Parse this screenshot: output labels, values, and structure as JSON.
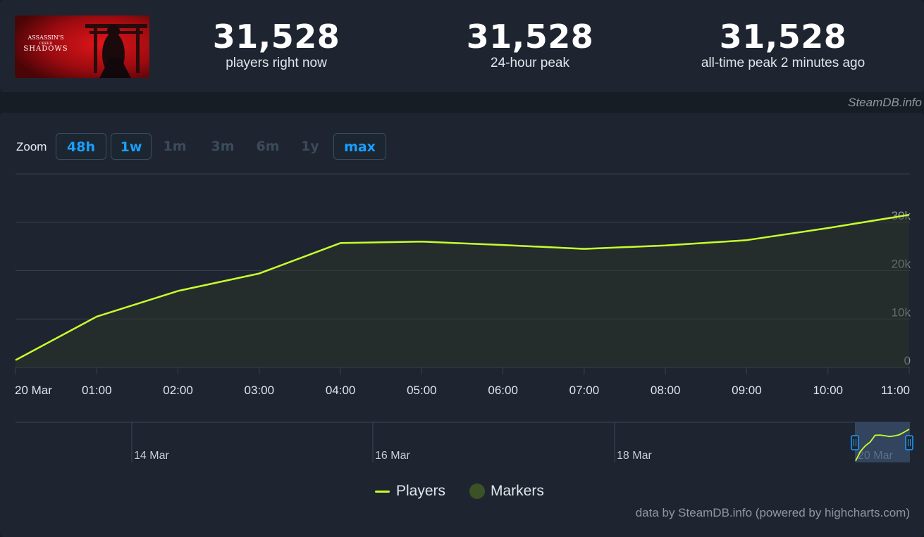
{
  "game": {
    "logo_line1": "ASSASSIN'S",
    "logo_line2": "CREED",
    "logo_line3": "SHADOWS"
  },
  "stats": [
    {
      "value": "31,528",
      "label": "players right now"
    },
    {
      "value": "31,528",
      "label": "24-hour peak"
    },
    {
      "value": "31,528",
      "label": "all-time peak 2 minutes ago"
    }
  ],
  "site_credit": "SteamDB.info",
  "zoom": {
    "label": "Zoom",
    "buttons": [
      {
        "label": "48h",
        "active": true
      },
      {
        "label": "1w",
        "active": true
      },
      {
        "label": "1m",
        "active": false
      },
      {
        "label": "3m",
        "active": false
      },
      {
        "label": "6m",
        "active": false
      },
      {
        "label": "1y",
        "active": false
      },
      {
        "label": "max",
        "active": true
      }
    ]
  },
  "legend": {
    "players": "Players",
    "markers": "Markers"
  },
  "footer": "data by SteamDB.info (powered by highcharts.com)",
  "colors": {
    "line": "#c8ff2e",
    "accent": "#1a9fff",
    "markers": "#3b5226",
    "navigator_fill": "#3a4f6e"
  },
  "chart_data": {
    "type": "line",
    "x": [
      "20 Mar",
      "01:00",
      "02:00",
      "03:00",
      "04:00",
      "05:00",
      "06:00",
      "07:00",
      "08:00",
      "09:00",
      "10:00",
      "11:00"
    ],
    "series": [
      {
        "name": "Players",
        "values": [
          1500,
          10500,
          15800,
          19400,
          25700,
          26000,
          25300,
          24500,
          25200,
          26300,
          28800,
          31528
        ]
      }
    ],
    "ylim": [
      0,
      40000
    ],
    "y_ticks": [
      0,
      10000,
      20000,
      30000
    ],
    "y_tick_labels": [
      "0",
      "10k",
      "20k",
      "30k"
    ],
    "grid": true,
    "legend": "bottom-center",
    "navigator": {
      "labels": [
        "14 Mar",
        "16 Mar",
        "18 Mar",
        "20 Mar"
      ]
    }
  }
}
